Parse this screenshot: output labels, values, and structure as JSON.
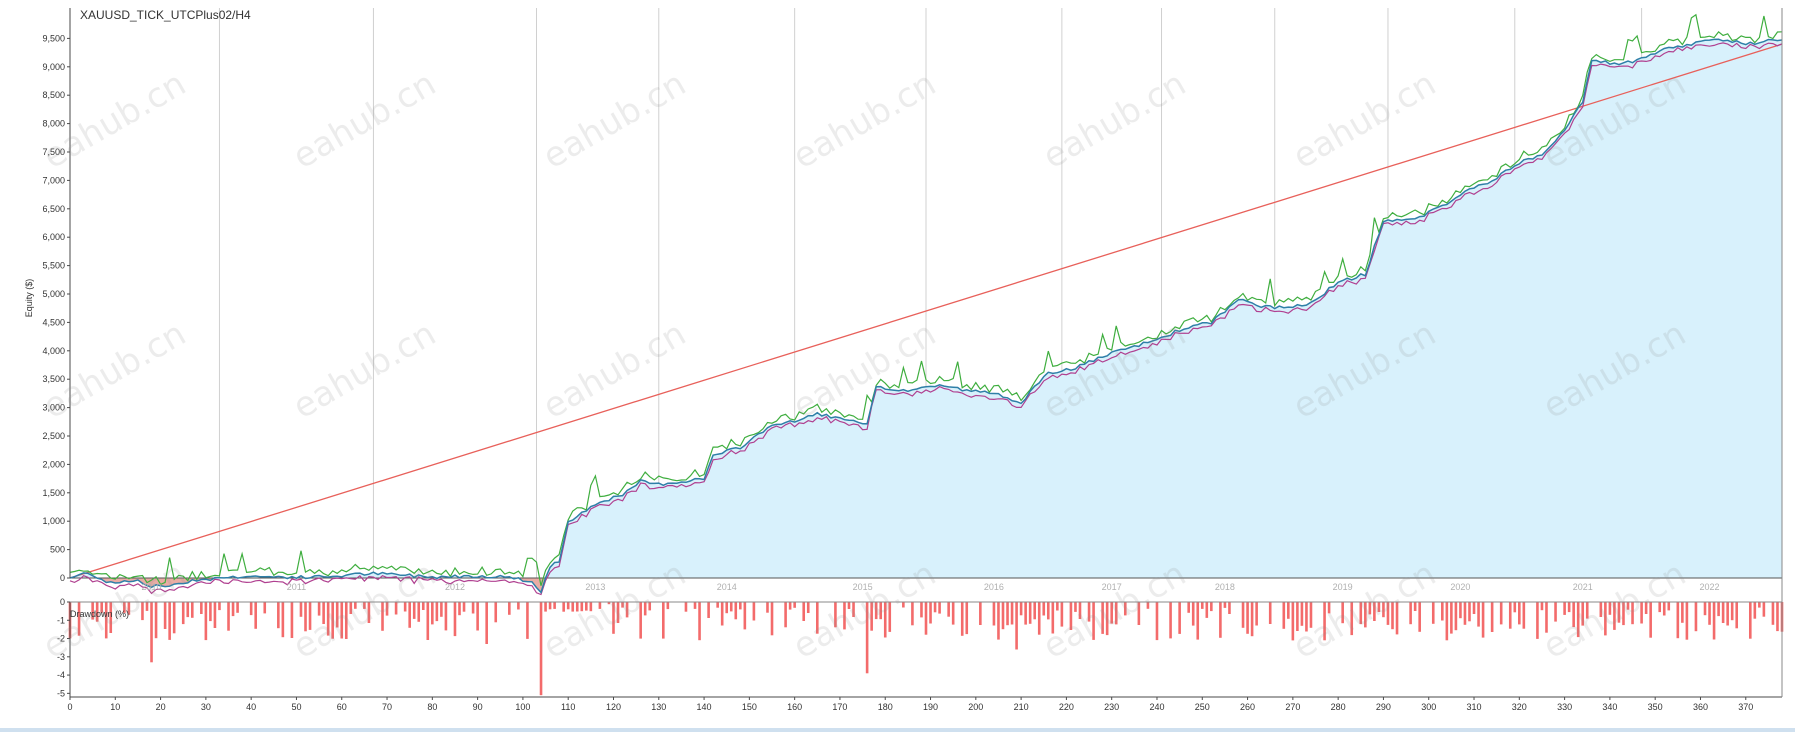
{
  "title": "XAUUSD_TICK_UTCPlus02/H4",
  "chart_data": {
    "type": "area",
    "title": "XAUUSD_TICK_UTCPlus02/H4",
    "ylabel": "Equity ($)",
    "xlabel": "",
    "ylim": [
      -300,
      9900
    ],
    "xlim": [
      0,
      378
    ],
    "y_ticks": [
      "0",
      "500",
      "1,000",
      "1,500",
      "2,000",
      "2,500",
      "3,000",
      "3,500",
      "4,000",
      "4,500",
      "5,000",
      "5,500",
      "6,000",
      "6,500",
      "7,000",
      "7,500",
      "8,000",
      "8,500",
      "9,000",
      "9,500"
    ],
    "x_ticks": [
      "0",
      "10",
      "20",
      "30",
      "40",
      "50",
      "60",
      "70",
      "80",
      "90",
      "100",
      "110",
      "120",
      "130",
      "140",
      "150",
      "160",
      "170",
      "180",
      "190",
      "200",
      "210",
      "220",
      "230",
      "240",
      "250",
      "260",
      "270",
      "280",
      "290",
      "300",
      "310",
      "320",
      "330",
      "340",
      "350",
      "360",
      "370"
    ],
    "grid": "vertical lines at year boundaries",
    "year_labels": [
      {
        "label": "2010",
        "x": 18
      },
      {
        "label": "2011",
        "x": 50
      },
      {
        "label": "2012",
        "x": 85
      },
      {
        "label": "2013",
        "x": 116
      },
      {
        "label": "2014",
        "x": 145
      },
      {
        "label": "2015",
        "x": 175
      },
      {
        "label": "2016",
        "x": 204
      },
      {
        "label": "2017",
        "x": 230
      },
      {
        "label": "2018",
        "x": 255
      },
      {
        "label": "2019",
        "x": 281
      },
      {
        "label": "2020",
        "x": 307
      },
      {
        "label": "2021",
        "x": 334
      },
      {
        "label": "2022",
        "x": 362
      }
    ],
    "year_boundaries": [
      33,
      67,
      103,
      130,
      160,
      189,
      219,
      241,
      266,
      291,
      319,
      347
    ],
    "trend_line": {
      "x": [
        0,
        378
      ],
      "y": [
        0,
        9400
      ]
    },
    "equity_keypoints": [
      [
        0,
        0
      ],
      [
        3,
        80
      ],
      [
        5,
        60
      ],
      [
        8,
        -60
      ],
      [
        10,
        -80
      ],
      [
        14,
        -30
      ],
      [
        18,
        -150
      ],
      [
        22,
        -130
      ],
      [
        27,
        -40
      ],
      [
        32,
        -10
      ],
      [
        38,
        30
      ],
      [
        45,
        20
      ],
      [
        52,
        10
      ],
      [
        58,
        30
      ],
      [
        66,
        80
      ],
      [
        72,
        60
      ],
      [
        80,
        20
      ],
      [
        90,
        40
      ],
      [
        98,
        10
      ],
      [
        102,
        -80
      ],
      [
        104,
        -250
      ],
      [
        106,
        200
      ],
      [
        108,
        300
      ],
      [
        110,
        1000
      ],
      [
        114,
        1200
      ],
      [
        117,
        1350
      ],
      [
        122,
        1450
      ],
      [
        126,
        1700
      ],
      [
        130,
        1650
      ],
      [
        135,
        1700
      ],
      [
        140,
        1750
      ],
      [
        142,
        2150
      ],
      [
        148,
        2300
      ],
      [
        155,
        2700
      ],
      [
        160,
        2750
      ],
      [
        165,
        2900
      ],
      [
        170,
        2800
      ],
      [
        176,
        2700
      ],
      [
        178,
        3350
      ],
      [
        185,
        3300
      ],
      [
        192,
        3400
      ],
      [
        198,
        3300
      ],
      [
        204,
        3250
      ],
      [
        210,
        3100
      ],
      [
        216,
        3600
      ],
      [
        222,
        3700
      ],
      [
        228,
        3900
      ],
      [
        234,
        4050
      ],
      [
        240,
        4200
      ],
      [
        246,
        4400
      ],
      [
        252,
        4500
      ],
      [
        258,
        4900
      ],
      [
        262,
        4800
      ],
      [
        268,
        4750
      ],
      [
        274,
        4850
      ],
      [
        280,
        5200
      ],
      [
        286,
        5350
      ],
      [
        290,
        6300
      ],
      [
        296,
        6300
      ],
      [
        302,
        6500
      ],
      [
        308,
        6800
      ],
      [
        314,
        7000
      ],
      [
        320,
        7300
      ],
      [
        326,
        7500
      ],
      [
        330,
        7900
      ],
      [
        334,
        8400
      ],
      [
        336,
        9100
      ],
      [
        342,
        9050
      ],
      [
        346,
        9100
      ],
      [
        352,
        9300
      ],
      [
        358,
        9400
      ],
      [
        364,
        9500
      ],
      [
        370,
        9400
      ],
      [
        375,
        9450
      ],
      [
        378,
        9450
      ]
    ],
    "series": [
      {
        "name": "",
        "role": "balance",
        "color": "#2f7fa8"
      },
      {
        "name": "",
        "role": "equity-high",
        "color": "#3fae3f"
      },
      {
        "name": "",
        "role": "equity-low",
        "color": "#b04090"
      }
    ],
    "drawdown": {
      "label": "Drawdown (%)",
      "y_ticks": [
        "0",
        "-1",
        "-2",
        "-3",
        "-4",
        "-5"
      ],
      "ylim": [
        -5.2,
        0
      ],
      "spikes": [
        [
          104,
          -5.1
        ],
        [
          18,
          -3.3
        ],
        [
          176,
          -3.9
        ],
        [
          209,
          -2.6
        ],
        [
          92,
          -2.3
        ],
        [
          60,
          -2.0
        ],
        [
          270,
          -2.1
        ]
      ]
    },
    "colors": {
      "area_fill": "#d8f1fc",
      "trend": "#e8605a",
      "negative_fill": "#e8a39a",
      "drawdown_bar": "#f36b6b",
      "axis": "#4a4a4a",
      "grid": "#d0d0d0"
    }
  },
  "watermark": "eahub.cn"
}
